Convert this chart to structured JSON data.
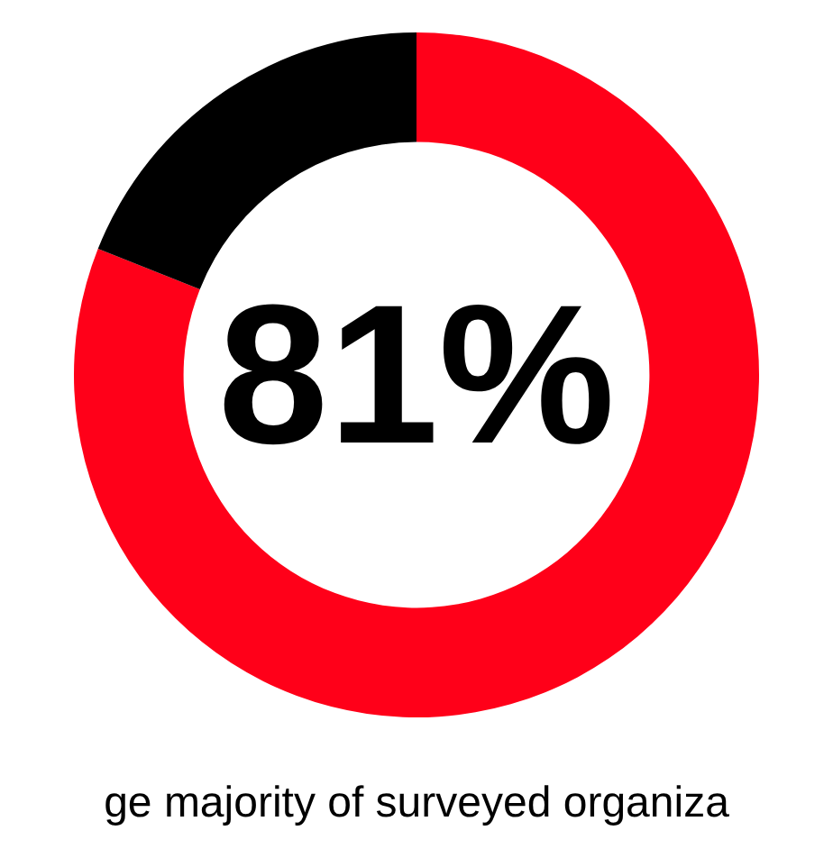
{
  "chart_data": {
    "type": "donut",
    "categories": [
      null,
      null
    ],
    "values": [
      81,
      19
    ],
    "colors": [
      "#ff0019",
      "#000000"
    ],
    "value_labels": [
      "81%",
      null
    ],
    "annotations": [
      "ge majority of surveyed organiza"
    ]
  }
}
